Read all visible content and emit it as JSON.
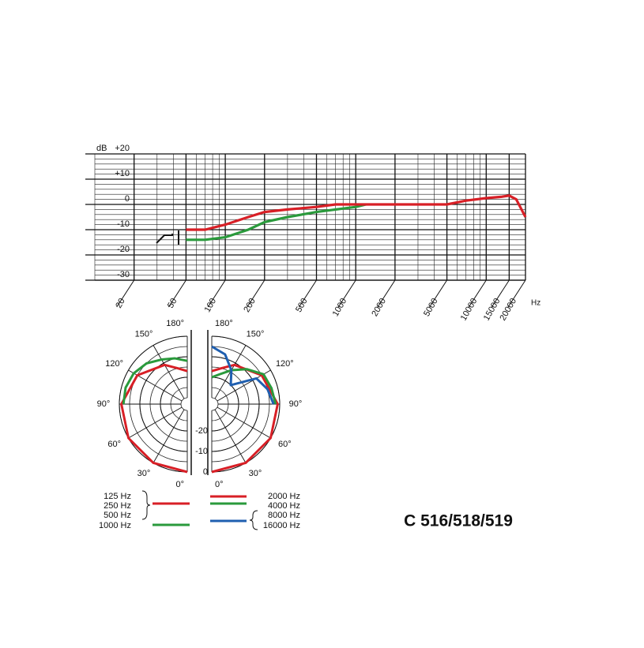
{
  "chart_data": [
    {
      "type": "line",
      "y_label": "dB",
      "x_unit": "Hz",
      "log_x": true,
      "grid": true,
      "xlim": [
        10,
        20000
      ],
      "xticks": [
        20,
        50,
        100,
        200,
        500,
        1000,
        2000,
        5000,
        10000,
        15000,
        20000
      ],
      "ylim": [
        -30,
        20
      ],
      "yticks": [
        {
          "value": 20,
          "label": "+20"
        },
        {
          "value": 10,
          "label": "+10"
        },
        0,
        -10,
        -20,
        -30
      ],
      "series": [
        {
          "color": "#2a9a3c",
          "x": [
            50,
            70,
            100,
            150,
            200,
            300,
            500,
            700,
            1000,
            1200
          ],
          "values": [
            -14,
            -14,
            -13,
            -10,
            -7,
            -5,
            -3,
            -2,
            -1,
            0
          ]
        },
        {
          "color": "#d81f26",
          "x": [
            50,
            70,
            100,
            150,
            200,
            300,
            500,
            700,
            1000,
            2000,
            3000,
            5000,
            7000,
            10000,
            13000,
            15000,
            17000,
            20000
          ],
          "values": [
            -10,
            -10,
            -8,
            -5,
            -3,
            -2,
            -1,
            0,
            0,
            0,
            0,
            0,
            1.5,
            2.5,
            3,
            3.5,
            2,
            -5
          ]
        }
      ]
    },
    {
      "type": "polar",
      "rlim": [
        -30,
        0
      ],
      "rticks": [
        -20,
        -10,
        0
      ],
      "angle_ticks": [
        {
          "value": 0,
          "label": "0°"
        },
        {
          "value": 30,
          "label": "30°"
        },
        {
          "value": 60,
          "label": "60°"
        },
        {
          "value": 90,
          "label": "90°"
        },
        {
          "value": 120,
          "label": "120°"
        },
        {
          "value": 150,
          "label": "150°"
        },
        {
          "value": 180,
          "label": "180°"
        }
      ],
      "series": [
        {
          "side": "left",
          "labels": [
            "125 Hz",
            "250 Hz",
            "500 Hz"
          ],
          "color": "#d81f26",
          "angles": [
            0,
            30,
            60,
            90,
            120,
            150,
            165,
            180
          ],
          "values": [
            0,
            0,
            0,
            -1,
            -5,
            -11,
            -15,
            -17
          ]
        },
        {
          "side": "left",
          "labels": [
            "1000 Hz"
          ],
          "color": "#2a9a3c",
          "angles": [
            90,
            105,
            120,
            135,
            150,
            165,
            180
          ],
          "values": [
            -2,
            -2,
            -3,
            -5,
            -8,
            -10,
            -12
          ]
        },
        {
          "side": "right",
          "labels": [
            "2000 Hz"
          ],
          "color": "#d81f26",
          "angles": [
            0,
            30,
            60,
            90,
            120,
            150,
            165,
            180
          ],
          "values": [
            0,
            0,
            0,
            -1,
            -5,
            -11,
            -15,
            -17
          ]
        },
        {
          "side": "right",
          "labels": [
            "4000 Hz"
          ],
          "color": "#2a9a3c",
          "angles": [
            90,
            105,
            120,
            135,
            150,
            165,
            180
          ],
          "values": [
            -2,
            -3,
            -4,
            -9,
            -14,
            -18,
            -20
          ]
        },
        {
          "side": "right",
          "labels": [
            "8000 Hz",
            "16000 Hz"
          ],
          "color": "#1f5fb0",
          "angles": [
            90,
            105,
            120,
            135,
            150,
            165,
            180
          ],
          "values": [
            -3,
            -5,
            -8,
            -20,
            -14,
            -8,
            -5
          ]
        }
      ]
    }
  ],
  "model": "C 516/518/519"
}
